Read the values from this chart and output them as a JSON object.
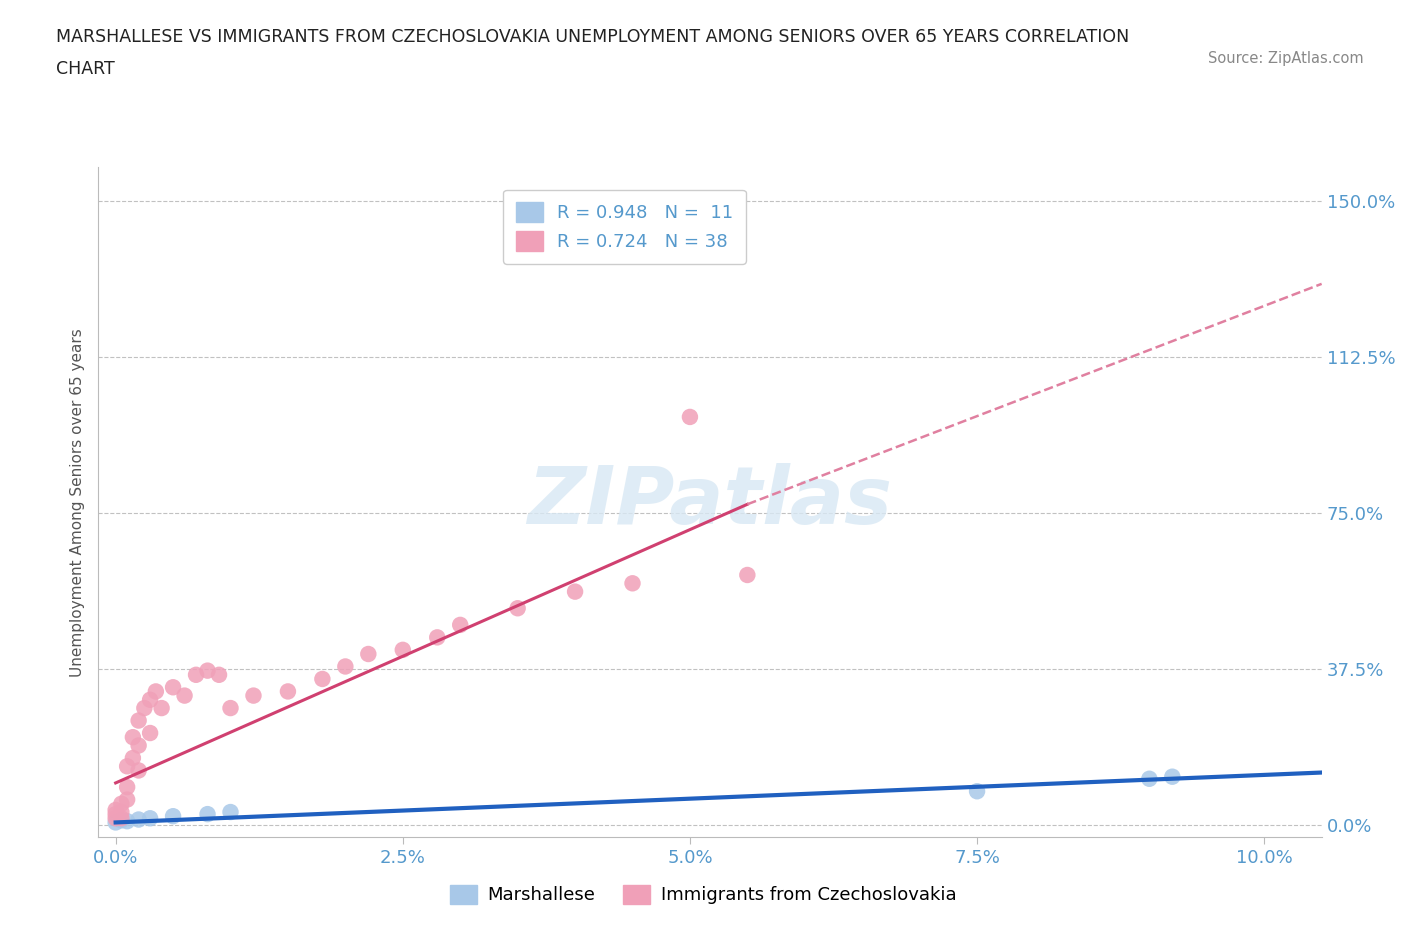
{
  "title_line1": "MARSHALLESE VS IMMIGRANTS FROM CZECHOSLOVAKIA UNEMPLOYMENT AMONG SENIORS OVER 65 YEARS CORRELATION",
  "title_line2": "CHART",
  "source": "Source: ZipAtlas.com",
  "xlabel_vals": [
    0.0,
    2.5,
    5.0,
    7.5,
    10.0
  ],
  "ylabel_vals": [
    0.0,
    37.5,
    75.0,
    112.5,
    150.0
  ],
  "xlim": [
    -0.15,
    10.5
  ],
  "ylim": [
    -3.0,
    158.0
  ],
  "watermark": "ZIPatlas",
  "blue_label": "Marshallese",
  "pink_label": "Immigrants from Czechoslovakia",
  "blue_R": "0.948",
  "blue_N": "11",
  "pink_R": "0.724",
  "pink_N": "38",
  "blue_scatter_x": [
    0.0,
    0.05,
    0.1,
    0.2,
    0.3,
    0.5,
    0.8,
    1.0,
    7.5,
    9.0,
    9.2
  ],
  "blue_scatter_y": [
    0.5,
    1.0,
    0.8,
    1.2,
    1.5,
    2.0,
    2.5,
    3.0,
    8.0,
    11.0,
    11.5
  ],
  "pink_scatter_x": [
    0.0,
    0.0,
    0.0,
    0.05,
    0.05,
    0.05,
    0.1,
    0.1,
    0.1,
    0.15,
    0.15,
    0.2,
    0.2,
    0.2,
    0.25,
    0.3,
    0.3,
    0.35,
    0.4,
    0.5,
    0.6,
    0.7,
    0.8,
    0.9,
    1.0,
    1.2,
    1.5,
    1.8,
    2.0,
    2.2,
    2.5,
    2.8,
    3.0,
    3.5,
    4.0,
    4.5,
    5.0,
    5.5
  ],
  "pink_scatter_y": [
    1.5,
    2.5,
    3.5,
    1.5,
    3.0,
    5.0,
    6.0,
    9.0,
    14.0,
    16.0,
    21.0,
    13.0,
    19.0,
    25.0,
    28.0,
    22.0,
    30.0,
    32.0,
    28.0,
    33.0,
    31.0,
    36.0,
    37.0,
    36.0,
    28.0,
    31.0,
    32.0,
    35.0,
    38.0,
    41.0,
    42.0,
    45.0,
    48.0,
    52.0,
    56.0,
    58.0,
    98.0,
    60.0
  ],
  "blue_line_x": [
    0.0,
    10.5
  ],
  "blue_line_y": [
    0.5,
    12.5
  ],
  "pink_solid_line_x": [
    0.0,
    5.5
  ],
  "pink_solid_line_y": [
    10.0,
    77.0
  ],
  "pink_dashed_line_x": [
    5.5,
    10.5
  ],
  "pink_dashed_line_y": [
    77.0,
    130.0
  ],
  "blue_dot_color": "#a8c8e8",
  "pink_dot_color": "#f0a0b8",
  "blue_line_color": "#2060c0",
  "pink_line_color": "#d04070",
  "pink_dash_color": "#e080a0",
  "grid_color": "#bbbbbb",
  "axis_label_color": "#5599cc",
  "title_color": "#222222",
  "source_color": "#888888",
  "background_color": "#ffffff",
  "ylabel": "Unemployment Among Seniors over 65 years",
  "watermark_color": "#d8e8f4"
}
